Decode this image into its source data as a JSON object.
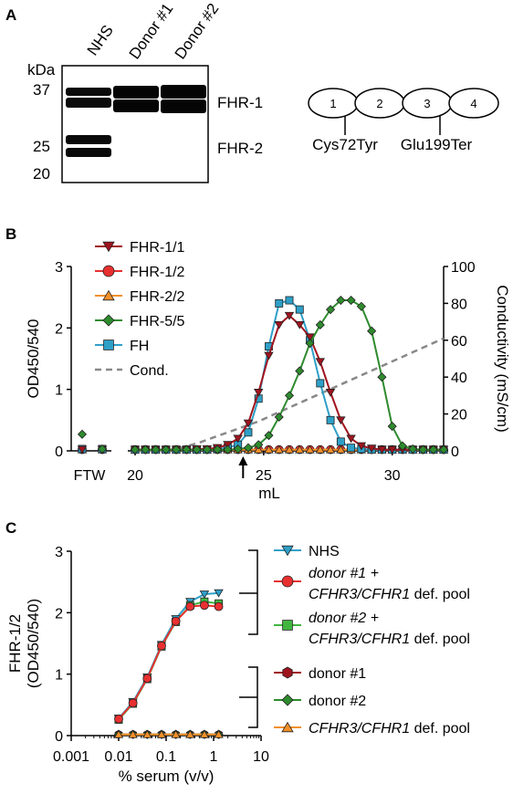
{
  "panel_a": {
    "letter": "A",
    "kda_label": "kDa",
    "lane_labels": [
      "NHS",
      "Donor #1",
      "Donor #2"
    ],
    "mw_markers": [
      "37",
      "25",
      "20"
    ],
    "band_labels": [
      "FHR-1",
      "FHR-2"
    ],
    "domain_numbers": [
      "1",
      "2",
      "3",
      "4"
    ],
    "mutations": [
      "Cys72Tyr",
      "Glu199Ter"
    ]
  },
  "panel_b": {
    "letter": "B"
  },
  "panel_c": {
    "letter": "C"
  },
  "colors": {
    "dark_red": "#a0141e",
    "red": "#e83030",
    "orange": "#f2902a",
    "green": "#2e8b2e",
    "bright_green": "#40b640",
    "blue": "#2ea0c8",
    "gray": "#888888"
  },
  "chart_data": [
    {
      "panel": "B",
      "type": "line",
      "xlabel": "mL",
      "ylabel": "OD450/540",
      "y2label": "Conductivity (mS/cm)",
      "xlim": [
        20,
        32
      ],
      "ylim": [
        0,
        3
      ],
      "y2lim": [
        0,
        100
      ],
      "x_ticks": [
        "20",
        "25",
        "30"
      ],
      "extra_x_label": "FTW",
      "y_ticks": [
        "0",
        "1",
        "2",
        "3"
      ],
      "y2_ticks": [
        "0",
        "20",
        "40",
        "60",
        "80",
        "100"
      ],
      "arrow_x": 24.2,
      "legend": [
        "FHR-1/1",
        "FHR-1/2",
        "FHR-2/2",
        "FHR-5/5",
        "FH",
        "Cond."
      ],
      "x": [
        20.0,
        20.4,
        20.8,
        21.2,
        21.6,
        22.0,
        22.4,
        22.8,
        23.2,
        23.6,
        24.0,
        24.4,
        24.8,
        25.2,
        25.6,
        26.0,
        26.4,
        26.8,
        27.2,
        27.6,
        28.0,
        28.4,
        28.8,
        29.2,
        29.6,
        30.0,
        30.4,
        30.8,
        31.2,
        31.6,
        32.0
      ],
      "ftw": {
        "x": [
          0,
          1
        ],
        "series": [
          {
            "name": "FHR-1/1",
            "values": [
              0.02,
              0.02
            ]
          },
          {
            "name": "FHR-1/2",
            "values": [
              0.02,
              0.02
            ]
          },
          {
            "name": "FHR-2/2",
            "values": [
              0.02,
              0.02
            ]
          },
          {
            "name": "FHR-5/5",
            "values": [
              0.27,
              0.03
            ]
          },
          {
            "name": "FH",
            "values": [
              0.03,
              0.03
            ]
          }
        ]
      },
      "series": [
        {
          "name": "FHR-1/1",
          "values": [
            0.02,
            0.02,
            0.02,
            0.02,
            0.02,
            0.02,
            0.03,
            0.03,
            0.05,
            0.1,
            0.2,
            0.45,
            0.95,
            1.55,
            2.05,
            2.2,
            2.05,
            1.85,
            1.45,
            0.95,
            0.5,
            0.2,
            0.08,
            0.04,
            0.02,
            0.02,
            0.02,
            0.02,
            0.02,
            0.02,
            0.02
          ]
        },
        {
          "name": "FHR-1/2",
          "values": [
            0.02,
            0.02,
            0.02,
            0.02,
            0.02,
            0.02,
            0.02,
            0.02,
            0.02,
            0.02,
            0.02,
            0.02,
            0.02,
            0.02,
            0.02,
            0.02,
            0.02,
            0.02,
            0.02,
            0.02,
            0.02,
            0.02,
            0.02,
            0.02,
            0.02,
            0.02,
            0.02,
            0.02,
            0.02,
            0.02,
            0.02
          ]
        },
        {
          "name": "FHR-2/2",
          "values": [
            0.02,
            0.02,
            0.02,
            0.02,
            0.02,
            0.02,
            0.02,
            0.02,
            0.02,
            0.02,
            0.02,
            0.02,
            0.02,
            0.02,
            0.02,
            0.02,
            0.02,
            0.02,
            0.02,
            0.02,
            0.02,
            0.02,
            0.02,
            0.02,
            0.02,
            0.02,
            0.02,
            0.02,
            0.02,
            0.02,
            0.02
          ]
        },
        {
          "name": "FHR-5/5",
          "values": [
            0.02,
            0.02,
            0.02,
            0.02,
            0.02,
            0.02,
            0.02,
            0.02,
            0.02,
            0.02,
            0.03,
            0.05,
            0.1,
            0.25,
            0.55,
            0.9,
            1.3,
            1.75,
            2.05,
            2.3,
            2.45,
            2.45,
            2.35,
            1.95,
            1.2,
            0.4,
            0.08,
            0.03,
            0.02,
            0.02,
            0.02
          ]
        },
        {
          "name": "FH",
          "values": [
            0.02,
            0.02,
            0.02,
            0.02,
            0.02,
            0.02,
            0.02,
            0.02,
            0.03,
            0.05,
            0.1,
            0.3,
            0.85,
            1.7,
            2.4,
            2.45,
            2.3,
            1.8,
            1.1,
            0.5,
            0.15,
            0.05,
            0.03,
            0.02,
            0.02,
            0.02,
            0.02,
            0.02,
            0.02,
            0.02,
            0.02
          ]
        },
        {
          "name": "Cond.",
          "axis": "right",
          "values": [
            0,
            0,
            0,
            0,
            1,
            2.5,
            4,
            6,
            8,
            10,
            12,
            14,
            16,
            18.5,
            21,
            23.5,
            26,
            28.5,
            31,
            33.5,
            36,
            38.5,
            41,
            43.5,
            46,
            48.5,
            51,
            53.5,
            56,
            58.5,
            61
          ]
        }
      ]
    },
    {
      "panel": "C",
      "type": "line",
      "xscale": "log",
      "xlabel": "% serum (v/v)",
      "ylabel": "FHR-1/2 (OD450/540)",
      "xlim": [
        0.001,
        10
      ],
      "ylim": [
        0,
        3
      ],
      "x_ticks": [
        "0.001",
        "0.01",
        "0.1",
        "1",
        "10"
      ],
      "y_ticks": [
        "0",
        "1",
        "2",
        "3"
      ],
      "x": [
        0.01,
        0.02,
        0.04,
        0.08,
        0.16,
        0.32,
        0.64,
        1.28
      ],
      "legend": [
        "NHS",
        "donor #1 + CFHR3/CFHR1 def. pool",
        "donor #2 + CFHR3/CFHR1 def. pool",
        "donor #1",
        "donor #2",
        "CFHR3/CFHR1 def. pool"
      ],
      "series": [
        {
          "name": "NHS",
          "values": [
            0.28,
            0.55,
            0.95,
            1.48,
            1.9,
            2.18,
            2.3,
            2.32
          ]
        },
        {
          "name": "donor #1 + CFHR3/CFHR1 def. pool",
          "values": [
            0.27,
            0.53,
            0.93,
            1.46,
            1.86,
            2.1,
            2.12,
            2.1
          ]
        },
        {
          "name": "donor #2 + CFHR3/CFHR1 def. pool",
          "values": [
            0.26,
            0.52,
            0.92,
            1.45,
            1.85,
            2.12,
            2.18,
            2.15
          ]
        },
        {
          "name": "donor #1",
          "values": [
            0.02,
            0.02,
            0.02,
            0.02,
            0.02,
            0.02,
            0.02,
            0.02
          ]
        },
        {
          "name": "donor #2",
          "values": [
            0.02,
            0.02,
            0.02,
            0.02,
            0.02,
            0.02,
            0.02,
            0.02
          ]
        },
        {
          "name": "CFHR3/CFHR1 def. pool",
          "values": [
            0.02,
            0.02,
            0.02,
            0.02,
            0.02,
            0.02,
            0.02,
            0.02
          ]
        }
      ]
    }
  ]
}
